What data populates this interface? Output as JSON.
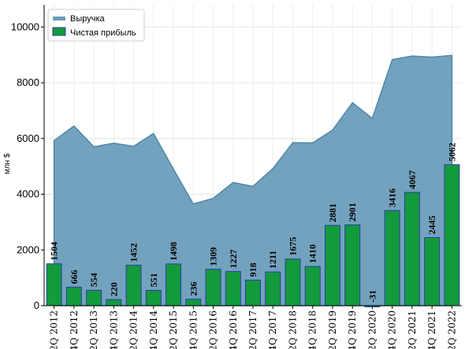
{
  "chart_data": {
    "type": "bar",
    "title": "",
    "xlabel": "",
    "ylabel": "млн $",
    "ylim": [
      0,
      10800
    ],
    "yticks": [
      0,
      2000,
      4000,
      6000,
      8000,
      10000
    ],
    "grid": true,
    "legend_position": "top-left",
    "categories": [
      "2Q 2012",
      "4Q 2012",
      "2Q 2013",
      "4Q 2013",
      "2Q 2014",
      "4Q 2014",
      "2Q 2015",
      "4Q 2015",
      "2Q 2016",
      "4Q 2016",
      "2Q 2017",
      "4Q 2017",
      "2Q 2018",
      "4Q 2018",
      "2Q 2019",
      "4Q 2019",
      "2Q 2020",
      "4Q 2020",
      "2Q 2021",
      "4Q 2021",
      "2Q 2022"
    ],
    "series": [
      {
        "name": "Выручка",
        "kind": "area",
        "color": "#6b9dbb",
        "values": [
          5920,
          6450,
          5700,
          5830,
          5720,
          6180,
          4900,
          3650,
          3850,
          4420,
          4280,
          4920,
          5850,
          5840,
          6300,
          7280,
          6720,
          8830,
          8960,
          8920,
          8980
        ]
      },
      {
        "name": "Чистая прибыль",
        "kind": "bar",
        "color": "#139a3c",
        "edge_color": "#2b3ea8",
        "values": [
          1504,
          666,
          554,
          220,
          1452,
          551,
          1498,
          236,
          1309,
          1227,
          918,
          1211,
          1675,
          1410,
          2881,
          2901,
          -31,
          3416,
          4067,
          2445,
          5062
        ],
        "labels": [
          "1504",
          "666",
          "554",
          "220",
          "1452",
          "551",
          "1498",
          "236",
          "1309",
          "1227",
          "918",
          "1211",
          "1675",
          "1410",
          "2881",
          "2901",
          "-31",
          "3416",
          "4067",
          "2445",
          "5062"
        ]
      }
    ]
  }
}
